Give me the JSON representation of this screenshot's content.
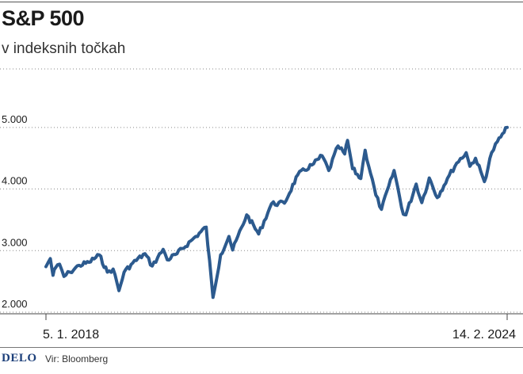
{
  "chart_data": {
    "type": "line",
    "title": "S&P 500",
    "subtitle": "v indeksnih točkah",
    "x_tick_labels": [
      "5. 1. 2018",
      "14. 2. 2024"
    ],
    "y_tick_labels": [
      "2.000",
      "3.000",
      "4.000",
      "5.000"
    ],
    "yticks": [
      2000,
      3000,
      4000,
      5000
    ],
    "ylim": [
      2000,
      5950
    ],
    "grid": true,
    "line_color": "#2c5a8e",
    "series": [
      {
        "values": [
          [
            "2018-01-05",
            2740
          ],
          [
            "2018-01-26",
            2870
          ],
          [
            "2018-02-08",
            2600
          ],
          [
            "2018-02-20",
            2720
          ],
          [
            "2018-03-12",
            2780
          ],
          [
            "2018-04-02",
            2580
          ],
          [
            "2018-05-01",
            2650
          ],
          [
            "2018-06-15",
            2760
          ],
          [
            "2018-08-01",
            2810
          ],
          [
            "2018-09-20",
            2930
          ],
          [
            "2018-10-29",
            2650
          ],
          [
            "2018-11-26",
            2700
          ],
          [
            "2018-12-24",
            2350
          ],
          [
            "2019-01-18",
            2650
          ],
          [
            "2019-03-01",
            2800
          ],
          [
            "2019-04-29",
            2950
          ],
          [
            "2019-06-03",
            2750
          ],
          [
            "2019-07-26",
            3020
          ],
          [
            "2019-08-15",
            2850
          ],
          [
            "2019-10-01",
            2950
          ],
          [
            "2019-12-31",
            3230
          ],
          [
            "2020-02-19",
            3380
          ],
          [
            "2020-03-23",
            2240
          ],
          [
            "2020-04-29",
            2930
          ],
          [
            "2020-06-08",
            3230
          ],
          [
            "2020-06-26",
            3010
          ],
          [
            "2020-09-02",
            3580
          ],
          [
            "2020-10-30",
            3270
          ],
          [
            "2020-12-31",
            3760
          ],
          [
            "2021-03-04",
            3770
          ],
          [
            "2021-05-07",
            4230
          ],
          [
            "2021-07-23",
            4410
          ],
          [
            "2021-09-02",
            4540
          ],
          [
            "2021-10-04",
            4300
          ],
          [
            "2021-11-18",
            4700
          ],
          [
            "2021-12-20",
            4570
          ],
          [
            "2022-01-03",
            4790
          ],
          [
            "2022-01-27",
            4330
          ],
          [
            "2022-03-08",
            4170
          ],
          [
            "2022-03-29",
            4630
          ],
          [
            "2022-05-20",
            3900
          ],
          [
            "2022-06-16",
            3670
          ],
          [
            "2022-08-16",
            4300
          ],
          [
            "2022-09-30",
            3590
          ],
          [
            "2022-10-12",
            3580
          ],
          [
            "2022-12-01",
            4080
          ],
          [
            "2022-12-28",
            3780
          ],
          [
            "2023-02-02",
            4180
          ],
          [
            "2023-03-13",
            3860
          ],
          [
            "2023-05-01",
            4170
          ],
          [
            "2023-06-15",
            4420
          ],
          [
            "2023-07-31",
            4590
          ],
          [
            "2023-08-18",
            4370
          ],
          [
            "2023-09-14",
            4500
          ],
          [
            "2023-10-27",
            4120
          ],
          [
            "2023-12-01",
            4590
          ],
          [
            "2023-12-29",
            4770
          ],
          [
            "2024-01-30",
            4920
          ],
          [
            "2024-02-14",
            5000
          ]
        ]
      }
    ]
  },
  "footer": {
    "logo": "DELO",
    "source": "Vir: Bloomberg"
  }
}
